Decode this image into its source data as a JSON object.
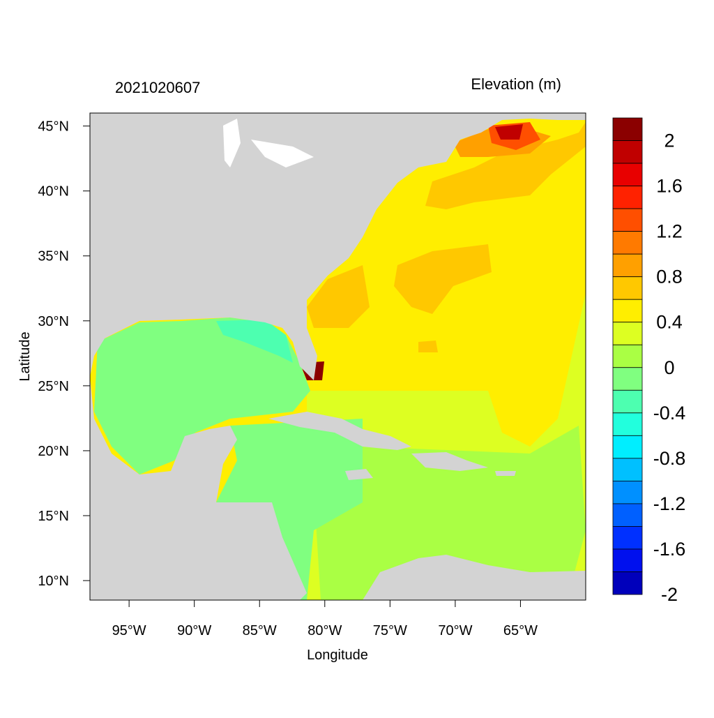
{
  "map": {
    "title_left": "2021020607",
    "title_right": "Elevation (m)",
    "x_axis_label": "Longitude",
    "y_axis_label": "Latitude",
    "lon_range": [
      -98,
      -60
    ],
    "lat_range": [
      8.5,
      46
    ],
    "x_ticks": [
      {
        "lon": -95,
        "label": "95°W"
      },
      {
        "lon": -90,
        "label": "90°W"
      },
      {
        "lon": -85,
        "label": "85°W"
      },
      {
        "lon": -80,
        "label": "80°W"
      },
      {
        "lon": -75,
        "label": "75°W"
      },
      {
        "lon": -70,
        "label": "70°W"
      },
      {
        "lon": -65,
        "label": "65°W"
      }
    ],
    "y_ticks": [
      {
        "lat": 10,
        "label": "10°N"
      },
      {
        "lat": 15,
        "label": "15°N"
      },
      {
        "lat": 20,
        "label": "20°N"
      },
      {
        "lat": 25,
        "label": "25°N"
      },
      {
        "lat": 30,
        "label": "30°N"
      },
      {
        "lat": 35,
        "label": "35°N"
      },
      {
        "lat": 40,
        "label": "40°N"
      },
      {
        "lat": 45,
        "label": "45°N"
      }
    ],
    "land_color": "#d3d3d3",
    "colorbar": {
      "colors_top_to_bottom": [
        "#8b0000",
        "#c00000",
        "#e80000",
        "#ff2200",
        "#ff4f00",
        "#ff7a00",
        "#ffa000",
        "#ffc800",
        "#ffee00",
        "#ddff22",
        "#aaff44",
        "#80ff80",
        "#4dffb0",
        "#22ffdd",
        "#00eeff",
        "#00c0ff",
        "#0090ff",
        "#0060ff",
        "#0030ff",
        "#0010ee",
        "#0000bb"
      ],
      "labels": [
        "2",
        "1.6",
        "1.2",
        "0.8",
        "0.4",
        "0",
        "-0.4",
        "-0.8",
        "-1.2",
        "-1.6",
        "-2"
      ]
    }
  }
}
